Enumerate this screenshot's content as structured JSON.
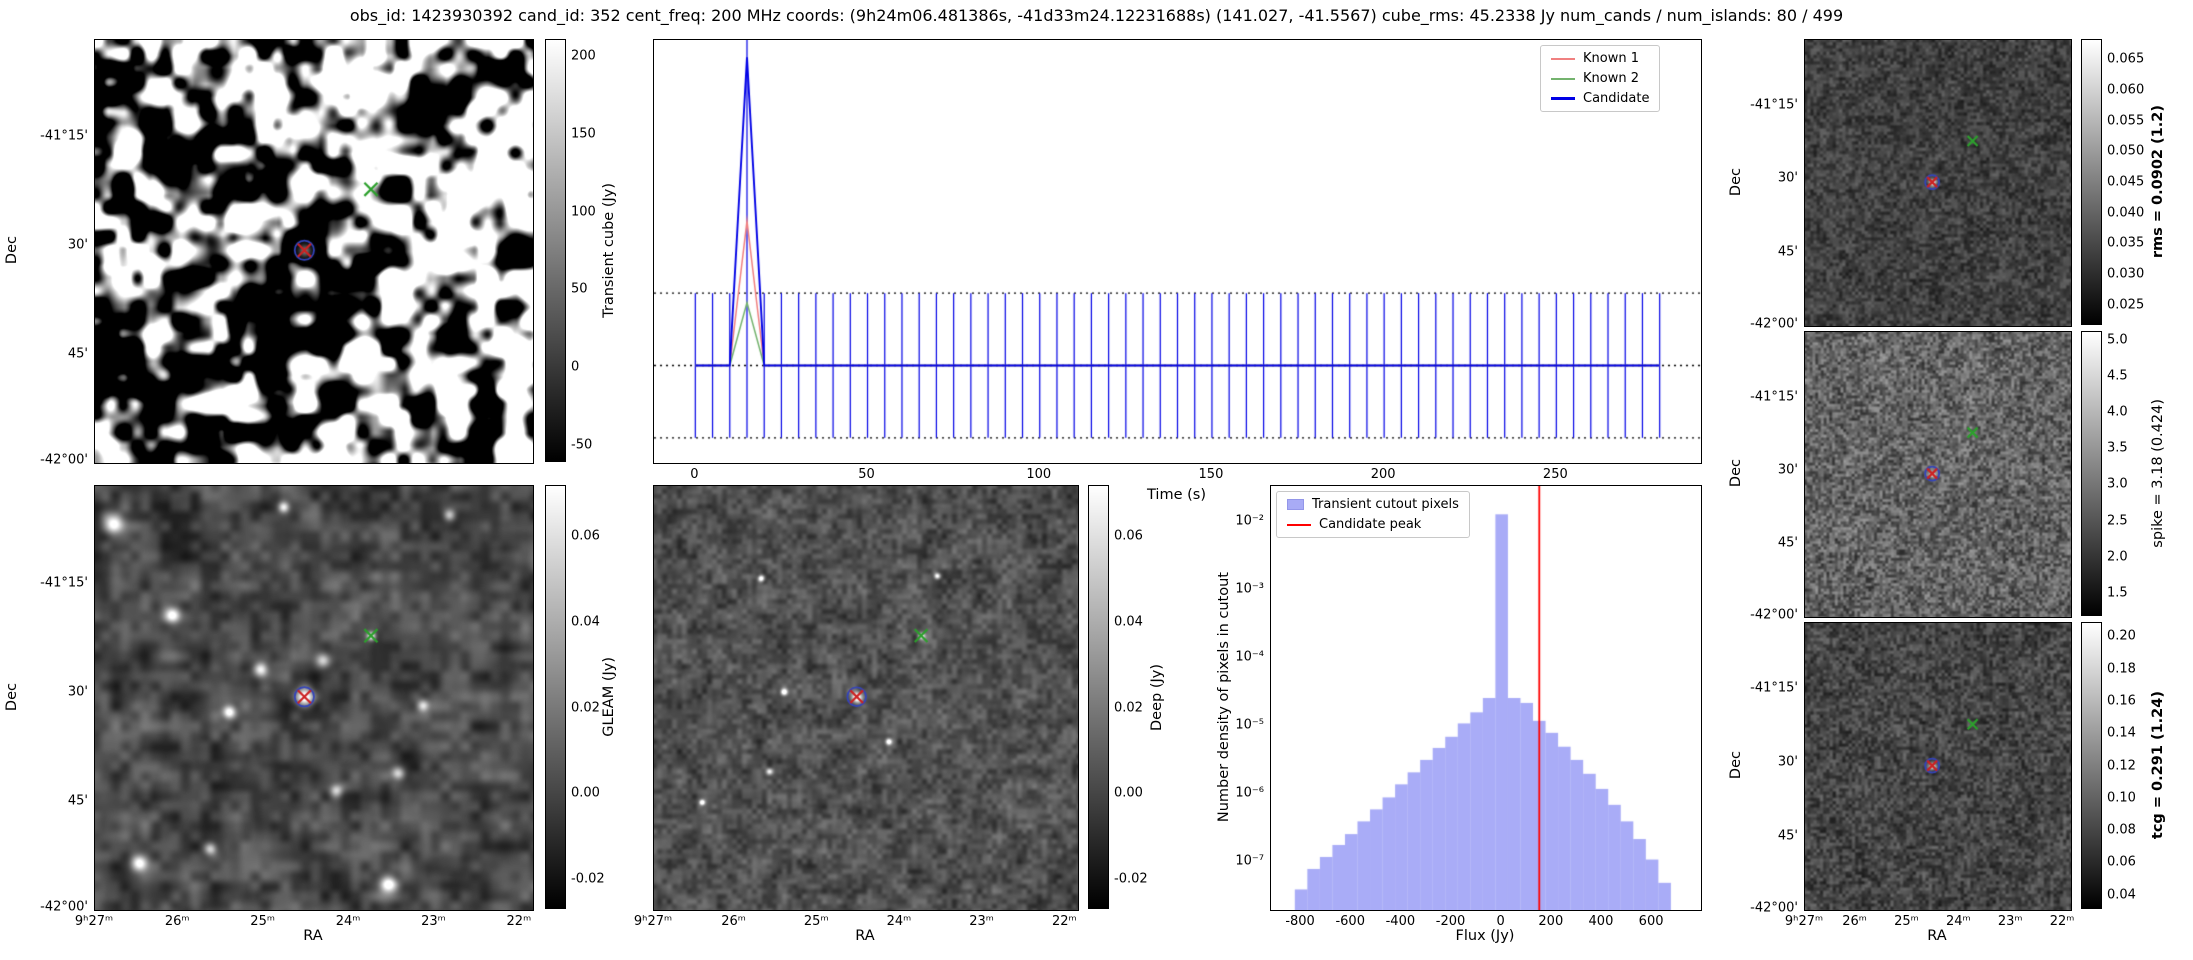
{
  "title": "obs_id: 1423930392 cand_id: 352 cent_freq: 200 MHz coords: (9h24m06.481386s, -41d33m24.12231688s) (141.027, -41.5567) cube_rms: 45.2338 Jy num_cands / num_islands: 80 / 499",
  "axes": {
    "ra_label": "RA",
    "dec_label": "Dec",
    "ra_ticks": [
      "9ʰ27ᵐ",
      "26ᵐ",
      "25ᵐ",
      "24ᵐ",
      "23ᵐ",
      "22ᵐ"
    ],
    "dec_ticks": [
      "-41°15'",
      "30'",
      "45'",
      "-42°00'"
    ]
  },
  "colorbars": {
    "transient": {
      "label": "Transient cube (Jy)",
      "ticks": [
        "200",
        "150",
        "100",
        "50",
        "0",
        "-50"
      ]
    },
    "gleam": {
      "label": "GLEAM (Jy)",
      "ticks": [
        "0.06",
        "0.04",
        "0.02",
        "0.00",
        "-0.02"
      ]
    },
    "deep": {
      "label": "Deep (Jy)",
      "ticks": [
        "0.06",
        "0.04",
        "0.02",
        "0.00",
        "-0.02"
      ]
    },
    "rms": {
      "label": "rms = 0.0902 (1.2)",
      "ticks": [
        "0.065",
        "0.060",
        "0.055",
        "0.050",
        "0.045",
        "0.040",
        "0.035",
        "0.030",
        "0.025"
      ]
    },
    "spike": {
      "label": "spike = 3.18 (0.424)",
      "ticks": [
        "5.0",
        "4.5",
        "4.0",
        "3.5",
        "3.0",
        "2.5",
        "2.0",
        "1.5"
      ]
    },
    "tcg": {
      "label": "tcg = 0.291 (1.24)",
      "ticks": [
        "0.20",
        "0.18",
        "0.16",
        "0.14",
        "0.12",
        "0.10",
        "0.08",
        "0.06",
        "0.04"
      ]
    }
  },
  "markers": {
    "candidate": {
      "fx": 0.478,
      "fy": 0.497,
      "x_color": "#cc2222",
      "ring_color": "#3344bb"
    },
    "known": {
      "fx": 0.63,
      "fy": 0.353,
      "color": "#2ca02c"
    }
  },
  "chart_data": [
    {
      "type": "line",
      "title": "Candidate light curve",
      "xlabel": "Time (s)",
      "xlim": [
        -12,
        292
      ],
      "ylim": [
        -62,
        207
      ],
      "rms_band": 46,
      "errorbar_step": 5,
      "errorbar_max": 280,
      "xticks": [
        0,
        50,
        100,
        150,
        200,
        250
      ],
      "series": [
        {
          "name": "Known 1",
          "color": "#f08080",
          "baseline": 0,
          "peak_time": 15,
          "peak_value": 92
        },
        {
          "name": "Known 2",
          "color": "#74b36e",
          "baseline": 0,
          "peak_time": 15,
          "peak_value": 40
        },
        {
          "name": "Candidate",
          "color": "#0000e6",
          "baseline": 0,
          "peak_time": 15,
          "peak_value": 196
        }
      ],
      "legend": [
        "Known 1",
        "Known 2",
        "Candidate"
      ],
      "legend_position": "upper right",
      "grid": false
    },
    {
      "type": "bar",
      "title": "Flux histogram of transient cutout",
      "xlabel": "Flux (Jy)",
      "ylabel": "Number density of pixels in cutout",
      "xlim": [
        -920,
        795
      ],
      "ylog_range": [
        -7.7,
        -1.47
      ],
      "bin_width": 50,
      "bin_left_edges": [
        -825,
        -775,
        -725,
        -675,
        -625,
        -575,
        -525,
        -475,
        -425,
        -375,
        -325,
        -275,
        -225,
        -175,
        -125,
        -75,
        -25,
        25,
        75,
        125,
        175,
        225,
        275,
        325,
        375,
        425,
        475,
        525,
        575,
        625
      ],
      "values": [
        4e-08,
        8e-08,
        1.2e-07,
        1.8e-07,
        2.6e-07,
        4e-07,
        6e-07,
        9e-07,
        1.4e-06,
        2.1e-06,
        3.2e-06,
        4.8e-06,
        7e-06,
        1.1e-05,
        1.6e-05,
        2.6e-05,
        0.013,
        2.6e-05,
        2.2e-05,
        1.2e-05,
        8e-06,
        5e-06,
        3.2e-06,
        2e-06,
        1.2e-06,
        7e-07,
        4e-07,
        2.2e-07,
        1.1e-07,
        5e-08
      ],
      "peak_line_x": 150,
      "bar_color": "#7b7ff2",
      "line_color": "#ff0000",
      "xticks": [
        -800,
        -600,
        -400,
        -200,
        0,
        200,
        400,
        600
      ],
      "yticks": [
        "10⁻²",
        "10⁻³",
        "10⁻⁴",
        "10⁻⁵",
        "10⁻⁶",
        "10⁻⁷"
      ],
      "legend": [
        "Transient cutout pixels",
        "Candidate peak"
      ],
      "legend_position": "upper left",
      "grid": false
    }
  ]
}
